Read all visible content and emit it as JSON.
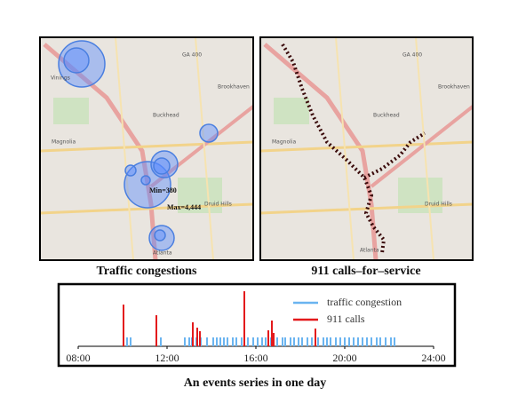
{
  "maps": [
    {
      "caption": "Traffic congestions",
      "labels": [
        "Vinings",
        "GA 400",
        "Brookhaven",
        "Buckhead",
        "Magnolia",
        "Druid Hills",
        "Atlanta",
        "Min=380",
        "Max=4,444"
      ]
    },
    {
      "caption": "911 calls–for–service",
      "labels": [
        "GA 400",
        "Brookhaven",
        "Buckhead",
        "Magnolia",
        "Druid Hills",
        "Atlanta"
      ]
    }
  ],
  "chart_data": {
    "type": "event",
    "title": "An events series in one day",
    "xlim": [
      8,
      24
    ],
    "xticks": [
      {
        "value": 8,
        "label": "08:00"
      },
      {
        "value": 12,
        "label": "12:00"
      },
      {
        "value": 16,
        "label": "16:00"
      },
      {
        "value": 20,
        "label": "20:00"
      },
      {
        "value": 24,
        "label": "24:00"
      }
    ],
    "ylim": [
      0,
      80
    ],
    "series": [
      {
        "name": "traffic congestion",
        "color": "#6ab4f0",
        "x": [
          10.2,
          10.36,
          11.72,
          12.8,
          13.0,
          13.12,
          13.32,
          13.52,
          13.8,
          14.08,
          14.24,
          14.4,
          14.56,
          14.72,
          14.96,
          15.12,
          15.36,
          15.64,
          15.88,
          16.08,
          16.28,
          16.44,
          16.68,
          16.96,
          17.2,
          17.32,
          17.56,
          17.72,
          17.92,
          18.08,
          18.32,
          18.52,
          18.8,
          19.04,
          19.2,
          19.36,
          19.6,
          19.8,
          20.0,
          20.2,
          20.4,
          20.6,
          20.8,
          21.0,
          21.2,
          21.44,
          21.6,
          21.84,
          22.08,
          22.24
        ],
        "values": [
          10,
          10,
          10,
          10,
          10,
          10,
          10,
          10,
          10,
          10,
          10,
          10,
          10,
          10,
          10,
          10,
          10,
          10,
          10,
          10,
          10,
          10,
          10,
          10,
          10,
          10,
          10,
          10,
          10,
          10,
          10,
          10,
          10,
          10,
          10,
          10,
          10,
          10,
          10,
          10,
          10,
          10,
          10,
          10,
          10,
          10,
          10,
          10,
          10,
          10
        ]
      },
      {
        "name": "911 calls",
        "color": "#e31a1c",
        "x": [
          10.04,
          11.52,
          13.16,
          13.36,
          13.48,
          15.48,
          16.56,
          16.72,
          16.8,
          18.68
        ],
        "values": [
          47,
          35,
          27,
          21,
          17,
          62,
          18,
          29,
          15,
          20
        ]
      }
    ]
  }
}
